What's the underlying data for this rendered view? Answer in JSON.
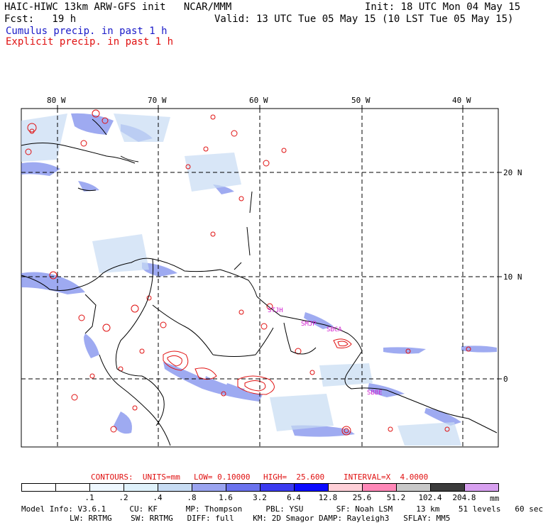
{
  "header": {
    "title": "HAIC-HIWC 13km ARW-GFS init   NCAR/MMM",
    "init": "Init: 18 UTC Mon 04 May 15",
    "fcst": "Fcst:   19 h",
    "valid": "Valid: 13 UTC Tue 05 May 15 (10 LST Tue 05 May 15)",
    "legend_cumulus": "Cumulus precip. in past 1 h",
    "legend_explicit": "Explicit precip. in past 1 h"
  },
  "map": {
    "lon_labels": [
      "80 W",
      "70 W",
      "60 W",
      "50 W",
      "40 W"
    ],
    "lat_labels": [
      "20 N",
      "10 N",
      "0"
    ],
    "station_labels": [
      "STJH",
      "SMJP",
      "SBCA",
      "SBBE"
    ],
    "colors": {
      "cumulus": "#3344dd",
      "explicit": "#e01010",
      "station": "#d020d0",
      "grid": "#000000"
    }
  },
  "contours": {
    "units": "CONTOURS:  UNITS=mm",
    "low": "LOW= 0.10000",
    "high": "HIGH=  25.600",
    "interval": "INTERVAL=X  4.0000"
  },
  "colorbar": {
    "levels": [
      ".1",
      ".2",
      ".4",
      ".8",
      "1.6",
      "3.2",
      "6.4",
      "12.8",
      "25.6",
      "51.2",
      "102.4",
      "204.8"
    ],
    "unit": "mm",
    "colors": [
      "#ffffff",
      "#ffffff",
      "#eef8ff",
      "#dff2fb",
      "#c7dcf3",
      "#9aa4f0",
      "#6a72ee",
      "#3a3af0",
      "#0a0aff",
      "#ffd0d8",
      "#ff88b8",
      "#c8c8c8",
      "#3c3c3c",
      "#d8a0f0"
    ]
  },
  "model_info": {
    "line1": "Model Info: V3.6.1     CU: KF      MP: Thompson     PBL: YSU       SF: Noah LSM     13 km    51 levels   60 sec",
    "line2": "LW: RRTMG    SW: RRTMG   DIFF: full    KM: 2D Smagor DAMP: Rayleigh3   SFLAY: MM5"
  }
}
